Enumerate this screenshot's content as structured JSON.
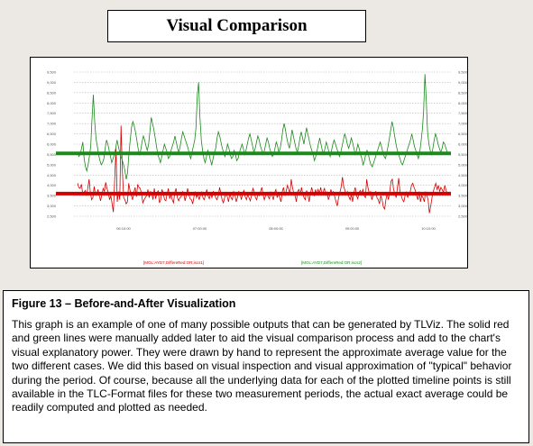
{
  "title": "Visual Comparison",
  "chart_data": {
    "type": "line",
    "y_ticks": [
      "9,500",
      "9,000",
      "8,500",
      "8,000",
      "7,500",
      "7,000",
      "6,500",
      "6,000",
      "5,500",
      "5,000",
      "4,500",
      "4,000",
      "3,500",
      "3,000",
      "2,500"
    ],
    "x_ticks": [
      "06:10:00",
      "07:00:00",
      "08:00:00",
      "09:00:00",
      "10:10:00"
    ],
    "ylim": [
      2500,
      9500
    ],
    "series": [
      {
        "name": "[MOL:AYD7,DiffereRed:OR;iscs1]",
        "color": "#d40000",
        "avg_line": 3600,
        "values": [
          4100,
          3900,
          3850,
          4050,
          3600,
          3650,
          3750,
          3500,
          3850,
          4300,
          3650,
          3300,
          3400,
          3950,
          3550,
          3600,
          3800,
          3500,
          3250,
          3550,
          3850,
          3700,
          4150,
          3850,
          3650,
          3300,
          3500,
          3100,
          2700,
          4200,
          5800,
          3200,
          3700,
          3300,
          6900,
          4700,
          3400,
          3300,
          3100,
          3200,
          4100,
          3750,
          3500,
          3300,
          3650,
          3900,
          3450,
          4050,
          3900,
          3850,
          3600,
          3150,
          3300,
          3400,
          3500,
          3800,
          3400,
          3700,
          3600,
          3300,
          3850,
          3350,
          3600,
          3750,
          3150,
          3300,
          3800,
          3600,
          3300,
          3250,
          3600,
          3850,
          3350,
          3550,
          3300,
          3150,
          3650,
          3850,
          3400,
          3250,
          3400,
          3450,
          3700,
          3600,
          3250,
          3500,
          3850,
          3550,
          3350,
          3300,
          3100,
          3450,
          3700,
          3400,
          3600,
          3300,
          3500,
          3700,
          3400,
          3300,
          3550,
          3800,
          3500,
          3350,
          3600,
          3400,
          3700,
          3600,
          3400,
          3300,
          3500,
          3900,
          3600,
          3300,
          3150,
          3400,
          3650,
          3450,
          3200,
          3600,
          3400,
          3300,
          3700,
          3550,
          3200,
          3400,
          3700,
          3600,
          3300,
          3600,
          3750,
          3450,
          3300,
          3550,
          3400,
          3250,
          3500,
          3850,
          3700,
          3400,
          3300,
          3600,
          3500,
          3700,
          3900,
          3550,
          3300,
          3500,
          3650,
          3450,
          3350,
          3700,
          3500,
          3300,
          3650,
          3800,
          3400,
          3600,
          3400,
          3200,
          3700,
          3900,
          3500,
          3700,
          4000,
          3800,
          3600,
          4300,
          3900,
          3600,
          3500,
          3200,
          3700,
          3800,
          3550,
          3900,
          3600,
          3400,
          3300,
          3750,
          3550,
          3200,
          3600,
          3900,
          3650,
          3500,
          3800,
          3550,
          3800,
          3600,
          3900,
          3550,
          3700,
          3850,
          3500,
          3700,
          3300,
          3500,
          3800,
          3600,
          3700,
          3450,
          3200,
          3000,
          3400,
          3650,
          3900,
          4400,
          3950,
          3750,
          3550,
          3700,
          3450,
          3300,
          3550,
          3200,
          3650,
          3900,
          3500,
          3350,
          3650,
          3750,
          3600,
          3800,
          3500,
          3400,
          4300,
          3900,
          3600,
          3700,
          3300,
          3500,
          3600,
          3700,
          3400,
          3300,
          3100,
          3500,
          3300,
          2950,
          2850,
          3300,
          3600,
          3300,
          3700,
          4200,
          4300,
          3800,
          3600,
          3400,
          3900,
          4350,
          3700,
          3500,
          3300,
          3200,
          3500,
          3700,
          3400,
          3600,
          3700,
          4000,
          4100,
          3900,
          3750,
          3500,
          3300,
          3700,
          3200,
          3500,
          3400,
          3200,
          3700,
          3500,
          3300,
          2650,
          3000,
          3400,
          3700,
          3900,
          4100,
          3800,
          4000,
          3700,
          3900,
          3800,
          3650,
          4000,
          3750,
          3600
        ]
      },
      {
        "name": "[MOL:AYD7,DiffereRed:OR;iscs2]",
        "color": "#1a8a1a",
        "avg_line": 5550,
        "values": [
          5600,
          5400,
          5500,
          5800,
          6100,
          5300,
          4900,
          4700,
          5000,
          5400,
          5900,
          7200,
          8400,
          7100,
          6300,
          5900,
          5500,
          5200,
          5000,
          5100,
          5300,
          5800,
          6200,
          6000,
          5700,
          5400,
          5100,
          5300,
          5500,
          5800,
          6200,
          5900,
          5600,
          5400,
          5200,
          5000,
          4700,
          4300,
          4600,
          5500,
          6200,
          6800,
          7100,
          6900,
          6600,
          6200,
          5800,
          5500,
          5700,
          6100,
          6400,
          6200,
          5900,
          5700,
          6000,
          6600,
          7300,
          7000,
          6700,
          6300,
          5900,
          5500,
          5300,
          5100,
          5400,
          5700,
          6000,
          5800,
          5600,
          5300,
          5400,
          5700,
          5900,
          6100,
          6400,
          6100,
          5800,
          5600,
          5900,
          6300,
          6600,
          6400,
          6200,
          6000,
          5800,
          5500,
          5300,
          5600,
          5900,
          6200,
          6800,
          8400,
          9000,
          7300,
          6200,
          5700,
          5300,
          5100,
          5400,
          5700,
          5500,
          5200,
          5000,
          5300,
          5600,
          5800,
          6300,
          6600,
          6400,
          6100,
          5800,
          5600,
          5400,
          5700,
          6000,
          5800,
          5500,
          5300,
          5400,
          5700,
          5500,
          5200,
          5300,
          5600,
          5800,
          6000,
          5800,
          5500,
          5700,
          6000,
          6300,
          6500,
          6200,
          5900,
          5600,
          5800,
          6100,
          6400,
          6200,
          5900,
          5700,
          5500,
          5700,
          6000,
          6300,
          6100,
          5800,
          5600,
          5400,
          5500,
          5800,
          6100,
          5900,
          5600,
          5800,
          6200,
          6700,
          7000,
          6700,
          6300,
          6000,
          5800,
          6200,
          6700,
          6400,
          6100,
          5800,
          5600,
          5900,
          6300,
          6600,
          6300,
          6000,
          6400,
          6800,
          6500,
          6200,
          5900,
          5700,
          5500,
          5200,
          5400,
          5700,
          6000,
          6300,
          6000,
          5700,
          5500,
          5800,
          6100,
          5900,
          5600,
          5400,
          5700,
          6000,
          6200,
          6000,
          5800,
          5600,
          5400,
          5600,
          5900,
          6200,
          6500,
          6300,
          6000,
          5800,
          6000,
          6300,
          6100,
          5800,
          5500,
          5700,
          6000,
          5800,
          5500,
          5300,
          5000,
          5200,
          5500,
          5700,
          5500,
          5200,
          5000,
          4900,
          5100,
          5300,
          5500,
          5700,
          5900,
          6100,
          5900,
          5600,
          5400,
          5300,
          5600,
          5900,
          6300,
          6700,
          7100,
          6800,
          6400,
          6000,
          5700,
          5500,
          5300,
          5100,
          5000,
          5200,
          5400,
          5600,
          5800,
          6000,
          6200,
          6500,
          6200,
          5900,
          5700,
          5500,
          5300,
          5600,
          6100,
          6700,
          7600,
          9400,
          8100,
          6600,
          6000,
          5700,
          5500,
          5800,
          6200,
          6500,
          6300,
          6000,
          5800,
          5600,
          5800,
          6100,
          6000,
          5800,
          5600
        ]
      }
    ]
  },
  "caption": {
    "title": "Figure 13 – Before-and-After Visualization",
    "text": "This graph is an example of one of many possible outputs that can be generated by TLViz. The solid red and green lines were manually added later to aid the visual comparison process and add to the chart's visual explanatory power.  They were drawn by hand to represent the approximate average value for the two different cases.  We did this based on visual inspection and visual approximation of \"typical\" behavior during the period.  Of course, because all the underlying data for each of the plotted timeline points is still available in the TLC-Format files for these two measurement periods, the actual exact average could be readily computed and plotted as needed."
  },
  "colors": {
    "background": "#ece9e4",
    "red_series": "#d40000",
    "green_series": "#1a8a1a"
  }
}
